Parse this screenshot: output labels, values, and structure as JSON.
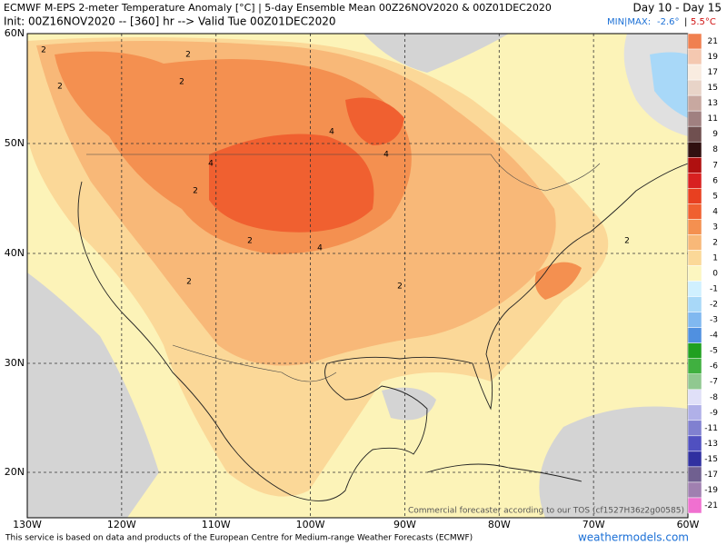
{
  "header": {
    "title": "ECMWF M-EPS 2-meter Temperature Anomaly [°C] | 5-day Ensemble Mean 00Z26NOV2020 & 00Z01DEC2020",
    "subtitle": "Init: 00Z16NOV2020 -- [360] hr --> Valid Tue 00Z01DEC2020",
    "period": "Day 10 - Day 15",
    "minmax_label": "MIN|MAX:",
    "min": "-2.6°",
    "separator": "|",
    "max": "5.5°C"
  },
  "map": {
    "lat_labels": [
      "60N",
      "50N",
      "40N",
      "30N",
      "20N"
    ],
    "lon_labels": [
      "130W",
      "120W",
      "110W",
      "100W",
      "90W",
      "80W",
      "70W",
      "60W"
    ],
    "contour_labels": [
      "2",
      "2",
      "2",
      "2",
      "4",
      "4",
      "4",
      "2",
      "2",
      "4",
      "2",
      "2",
      "2"
    ],
    "credit": "Commercial forecaster according to our TOS (cf1527H36z2g00585)"
  },
  "colorbar": {
    "levels": [
      21,
      19,
      17,
      15,
      13,
      11,
      9,
      8,
      7,
      6,
      5,
      4,
      3,
      2,
      1,
      0,
      -1,
      -2,
      -3,
      -4,
      -5,
      -6,
      -7,
      -8,
      -9,
      -11,
      -13,
      -15,
      -17,
      -19,
      -21
    ],
    "colors": [
      "#f08050",
      "#f4c8b0",
      "#f9ece0",
      "#e8d4c8",
      "#c8a8a0",
      "#a08080",
      "#705050",
      "#301010",
      "#b01010",
      "#d82020",
      "#e84020",
      "#f06030",
      "#f49050",
      "#f8b878",
      "#fbd898",
      "#fcf6c0",
      "#d0f0ff",
      "#a8d8f8",
      "#80b8f0",
      "#5090e0",
      "#20a020",
      "#40b040",
      "#90c890",
      "#e0e0f8",
      "#b0b0e8",
      "#8080d0",
      "#5050c0",
      "#3030a0",
      "#706090",
      "#a080b0",
      "#f070d0"
    ]
  },
  "footer": {
    "notice": "This service is based on data and products of the European Centre for Medium-range Weather Forecasts (ECMWF)",
    "site": "weathermodels.com"
  }
}
